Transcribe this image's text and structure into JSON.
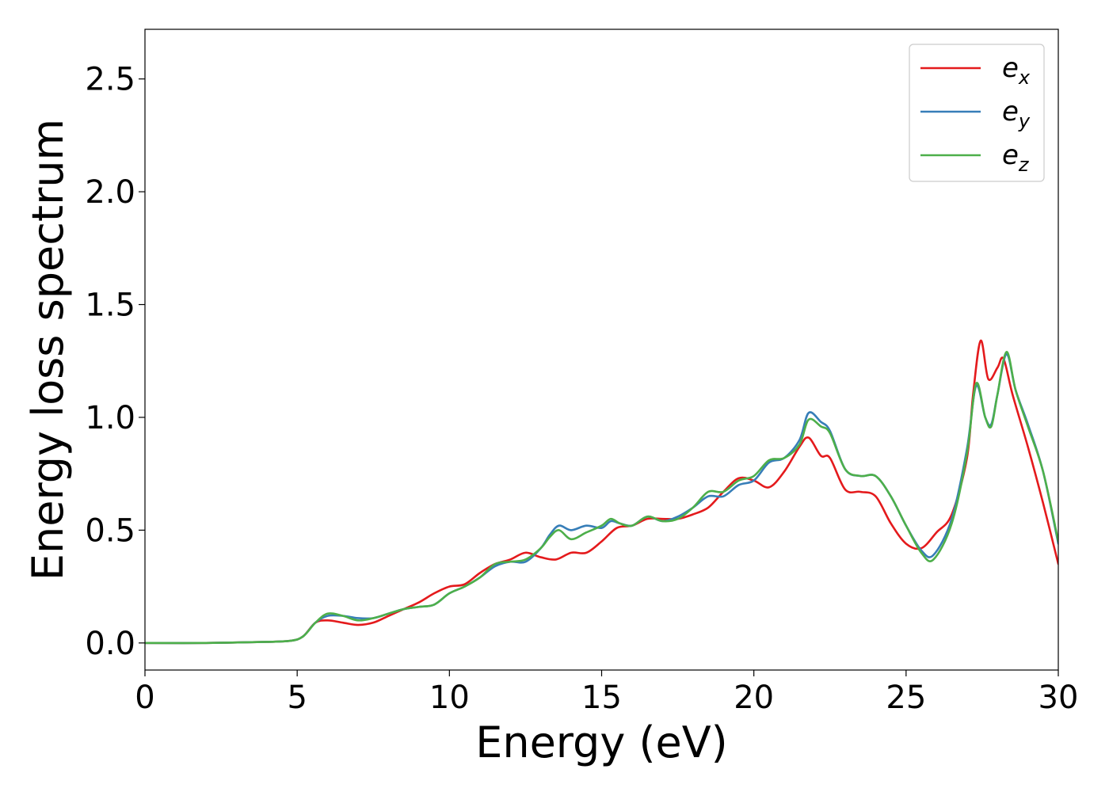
{
  "chart_data": {
    "type": "line",
    "xlabel": "Energy (eV)",
    "ylabel": "Energy loss spectrum",
    "xlim": [
      0,
      30
    ],
    "ylim": [
      -0.12,
      2.72
    ],
    "xticks": [
      0,
      5,
      10,
      15,
      20,
      25,
      30
    ],
    "xtick_labels": [
      "0",
      "5",
      "10",
      "15",
      "20",
      "25",
      "30"
    ],
    "yticks": [
      0.0,
      0.5,
      1.0,
      1.5,
      2.0,
      2.5
    ],
    "ytick_labels": [
      "0.0",
      "0.5",
      "1.0",
      "1.5",
      "2.0",
      "2.5"
    ],
    "grid": false,
    "legend_position": "top-right",
    "series": [
      {
        "name": "e_x",
        "label_base": "e",
        "label_sub": "x",
        "color": "#e41a1c",
        "x": [
          0,
          2,
          4,
          4.8,
          5.2,
          5.6,
          6.0,
          6.5,
          7.0,
          7.5,
          8.0,
          8.5,
          9.0,
          9.5,
          10.0,
          10.5,
          11.0,
          11.5,
          12.0,
          12.5,
          13.0,
          13.5,
          14.0,
          14.5,
          15.0,
          15.5,
          16.0,
          16.5,
          17.0,
          17.5,
          18.0,
          18.5,
          19.0,
          19.5,
          20.0,
          20.5,
          21.0,
          21.5,
          21.8,
          22.2,
          22.5,
          23.0,
          23.5,
          24.0,
          24.5,
          25.0,
          25.5,
          26.0,
          26.5,
          27.0,
          27.2,
          27.45,
          27.7,
          28.0,
          28.2,
          28.5,
          29.0,
          29.5,
          30.0
        ],
        "values": [
          0.0,
          0.0,
          0.005,
          0.01,
          0.03,
          0.09,
          0.1,
          0.09,
          0.08,
          0.09,
          0.12,
          0.15,
          0.18,
          0.22,
          0.25,
          0.26,
          0.31,
          0.35,
          0.37,
          0.4,
          0.38,
          0.37,
          0.4,
          0.4,
          0.45,
          0.51,
          0.52,
          0.55,
          0.55,
          0.55,
          0.57,
          0.6,
          0.67,
          0.73,
          0.72,
          0.69,
          0.76,
          0.87,
          0.91,
          0.83,
          0.82,
          0.68,
          0.67,
          0.65,
          0.53,
          0.44,
          0.42,
          0.49,
          0.57,
          0.82,
          1.1,
          1.34,
          1.17,
          1.22,
          1.26,
          1.1,
          0.87,
          0.62,
          0.35
        ]
      },
      {
        "name": "e_y",
        "label_base": "e",
        "label_sub": "y",
        "color": "#377eb8",
        "x": [
          0,
          2,
          4,
          4.8,
          5.2,
          5.6,
          6.0,
          6.5,
          7.0,
          7.5,
          8.0,
          8.5,
          9.0,
          9.5,
          10.0,
          10.5,
          11.0,
          11.5,
          12.0,
          12.5,
          13.0,
          13.3,
          13.6,
          14.0,
          14.5,
          15.0,
          15.3,
          15.6,
          16.0,
          16.5,
          17.0,
          17.5,
          18.0,
          18.5,
          19.0,
          19.5,
          20.0,
          20.5,
          21.0,
          21.5,
          21.8,
          22.2,
          22.5,
          23.0,
          23.5,
          24.0,
          24.5,
          25.0,
          25.5,
          25.9,
          26.5,
          27.0,
          27.3,
          27.6,
          27.8,
          28.0,
          28.3,
          28.6,
          29.0,
          29.5,
          30.0
        ],
        "values": [
          0.0,
          0.0,
          0.005,
          0.01,
          0.03,
          0.09,
          0.12,
          0.12,
          0.11,
          0.11,
          0.13,
          0.15,
          0.16,
          0.17,
          0.22,
          0.25,
          0.29,
          0.34,
          0.36,
          0.36,
          0.42,
          0.48,
          0.52,
          0.5,
          0.52,
          0.51,
          0.54,
          0.53,
          0.52,
          0.56,
          0.54,
          0.56,
          0.6,
          0.65,
          0.65,
          0.7,
          0.72,
          0.8,
          0.82,
          0.9,
          1.02,
          0.98,
          0.94,
          0.77,
          0.74,
          0.74,
          0.65,
          0.52,
          0.41,
          0.39,
          0.55,
          0.86,
          1.14,
          1.0,
          0.97,
          1.1,
          1.28,
          1.12,
          0.97,
          0.76,
          0.44
        ]
      },
      {
        "name": "e_z",
        "label_base": "e",
        "label_sub": "z",
        "color": "#4daf4a",
        "x": [
          0,
          2,
          4,
          4.8,
          5.2,
          5.6,
          6.0,
          6.5,
          7.0,
          7.5,
          8.0,
          8.5,
          9.0,
          9.5,
          10.0,
          10.5,
          11.0,
          11.5,
          12.0,
          12.5,
          13.0,
          13.3,
          13.6,
          14.0,
          14.5,
          15.0,
          15.3,
          15.6,
          16.0,
          16.5,
          17.0,
          17.5,
          18.0,
          18.5,
          19.0,
          19.5,
          20.0,
          20.5,
          21.0,
          21.5,
          21.8,
          22.2,
          22.5,
          23.0,
          23.5,
          24.0,
          24.5,
          25.0,
          25.5,
          25.9,
          26.5,
          27.0,
          27.3,
          27.6,
          27.8,
          28.0,
          28.3,
          28.6,
          29.0,
          29.5,
          30.0
        ],
        "values": [
          0.0,
          0.0,
          0.005,
          0.01,
          0.03,
          0.09,
          0.13,
          0.12,
          0.1,
          0.11,
          0.13,
          0.15,
          0.16,
          0.17,
          0.22,
          0.25,
          0.29,
          0.35,
          0.36,
          0.37,
          0.42,
          0.47,
          0.5,
          0.46,
          0.49,
          0.52,
          0.55,
          0.53,
          0.52,
          0.56,
          0.54,
          0.55,
          0.6,
          0.67,
          0.67,
          0.72,
          0.74,
          0.81,
          0.82,
          0.88,
          0.99,
          0.96,
          0.93,
          0.77,
          0.74,
          0.74,
          0.65,
          0.52,
          0.4,
          0.37,
          0.53,
          0.84,
          1.15,
          1.0,
          0.96,
          1.1,
          1.29,
          1.12,
          0.96,
          0.76,
          0.45
        ]
      }
    ]
  }
}
